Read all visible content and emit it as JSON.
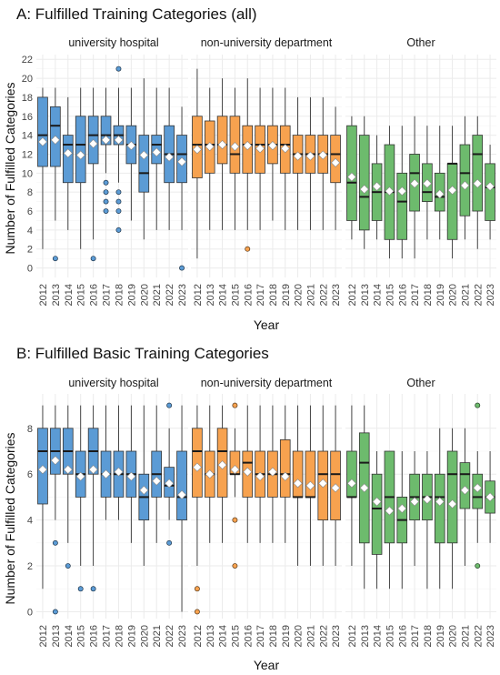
{
  "chart_data": [
    {
      "type": "box",
      "title": "A: Fulfilled Training Categories (all)",
      "xlabel": "Year",
      "ylabel": "Number of Fulfilled Categories",
      "ylim": [
        -1,
        22.5
      ],
      "yticks": [
        0,
        2,
        4,
        6,
        8,
        10,
        12,
        14,
        16,
        18,
        20,
        22
      ],
      "years": [
        "2012",
        "2013",
        "2014",
        "2015",
        "2016",
        "2017",
        "2018",
        "2019",
        "2020",
        "2021",
        "2022",
        "2023"
      ],
      "grid": true,
      "legend": "none",
      "facets": [
        {
          "name": "university hospital",
          "color": "#5b9bd5",
          "boxes": [
            {
              "min": 2,
              "q1": 10.7,
              "median": 14,
              "q3": 18,
              "max": 19,
              "mean": 13.3,
              "outliers": []
            },
            {
              "min": 5,
              "q1": 10.7,
              "median": 15,
              "q3": 17,
              "max": 19,
              "mean": 13.5,
              "outliers": [
                1
              ]
            },
            {
              "min": 4,
              "q1": 9,
              "median": 13,
              "q3": 14,
              "max": 18,
              "mean": 12.1,
              "outliers": []
            },
            {
              "min": 2,
              "q1": 9,
              "median": 13,
              "q3": 16,
              "max": 19,
              "mean": 11.9,
              "outliers": []
            },
            {
              "min": 3,
              "q1": 11,
              "median": 14,
              "q3": 16,
              "max": 19,
              "mean": 13.1,
              "outliers": [
                1
              ]
            },
            {
              "min": 10,
              "q1": 13,
              "median": 14,
              "q3": 16,
              "max": 19,
              "mean": 13.5,
              "outliers": [
                6,
                7,
                8,
                9
              ]
            },
            {
              "min": 9,
              "q1": 13,
              "median": 14,
              "q3": 15,
              "max": 19,
              "mean": 13.5,
              "outliers": [
                4,
                6,
                7,
                8,
                21
              ]
            },
            {
              "min": 5,
              "q1": 11,
              "median": 13,
              "q3": 15,
              "max": 19,
              "mean": 12.9,
              "outliers": []
            },
            {
              "min": 3,
              "q1": 8,
              "median": 10,
              "q3": 14,
              "max": 20,
              "mean": 11.9,
              "outliers": []
            },
            {
              "min": 4,
              "q1": 11,
              "median": 13,
              "q3": 14,
              "max": 19,
              "mean": 12.2,
              "outliers": []
            },
            {
              "min": 4,
              "q1": 9,
              "median": 12,
              "q3": 15,
              "max": 19,
              "mean": 11.7,
              "outliers": []
            },
            {
              "min": 4,
              "q1": 9,
              "median": 12,
              "q3": 14,
              "max": 17,
              "mean": 11.2,
              "outliers": [
                0
              ]
            }
          ]
        },
        {
          "name": "non-university department",
          "color": "#f7a24f",
          "boxes": [
            {
              "min": 1,
              "q1": 9.5,
              "median": 13,
              "q3": 16,
              "max": 21,
              "mean": 12.5,
              "outliers": []
            },
            {
              "min": 4,
              "q1": 10,
              "median": 13,
              "q3": 15.5,
              "max": 19,
              "mean": 12.8,
              "outliers": []
            },
            {
              "min": 4,
              "q1": 11,
              "median": 13,
              "q3": 16,
              "max": 20,
              "mean": 13,
              "outliers": []
            },
            {
              "min": 4,
              "q1": 10,
              "median": 12,
              "q3": 16,
              "max": 19,
              "mean": 12.8,
              "outliers": []
            },
            {
              "min": 4,
              "q1": 10,
              "median": 13,
              "q3": 15,
              "max": 20,
              "mean": 12.9,
              "outliers": [
                2
              ]
            },
            {
              "min": 4,
              "q1": 10,
              "median": 13,
              "q3": 15,
              "max": 19,
              "mean": 12.6,
              "outliers": []
            },
            {
              "min": 5,
              "q1": 11,
              "median": 13,
              "q3": 15,
              "max": 19,
              "mean": 12.9,
              "outliers": []
            },
            {
              "min": 4,
              "q1": 10,
              "median": 13,
              "q3": 15,
              "max": 19,
              "mean": 12.6,
              "outliers": []
            },
            {
              "min": 4,
              "q1": 10,
              "median": 12,
              "q3": 14,
              "max": 18,
              "mean": 11.8,
              "outliers": []
            },
            {
              "min": 4,
              "q1": 10,
              "median": 12,
              "q3": 14,
              "max": 18,
              "mean": 11.8,
              "outliers": []
            },
            {
              "min": 4,
              "q1": 10,
              "median": 12,
              "q3": 14,
              "max": 18,
              "mean": 11.9,
              "outliers": []
            },
            {
              "min": 4,
              "q1": 9,
              "median": 12,
              "q3": 14,
              "max": 17,
              "mean": 11.1,
              "outliers": []
            }
          ]
        },
        {
          "name": "Other",
          "color": "#6dbb6d",
          "boxes": [
            {
              "min": 3,
              "q1": 5,
              "median": 9,
              "q3": 15,
              "max": 16,
              "mean": 9.6,
              "outliers": []
            },
            {
              "min": 2,
              "q1": 4,
              "median": 7.5,
              "q3": 14,
              "max": 16,
              "mean": 8.3,
              "outliers": []
            },
            {
              "min": 3,
              "q1": 5,
              "median": 8,
              "q3": 11,
              "max": 14,
              "mean": 8.6,
              "outliers": []
            },
            {
              "min": 1,
              "q1": 3,
              "median": 8,
              "q3": 13,
              "max": 15,
              "mean": 8.1,
              "outliers": []
            },
            {
              "min": 1,
              "q1": 3,
              "median": 7,
              "q3": 10,
              "max": 15,
              "mean": 8.1,
              "outliers": []
            },
            {
              "min": 1,
              "q1": 6,
              "median": 10,
              "q3": 12,
              "max": 16,
              "mean": 8.9,
              "outliers": []
            },
            {
              "min": 3,
              "q1": 7,
              "median": 8,
              "q3": 11,
              "max": 15,
              "mean": 8.9,
              "outliers": []
            },
            {
              "min": 3,
              "q1": 6,
              "median": 7.5,
              "q3": 10,
              "max": 15,
              "mean": 7.8,
              "outliers": []
            },
            {
              "min": 1,
              "q1": 3,
              "median": 11,
              "q3": 11,
              "max": 15,
              "mean": 8.2,
              "outliers": []
            },
            {
              "min": 3,
              "q1": 5.5,
              "median": 10,
              "q3": 13,
              "max": 16,
              "mean": 8.7,
              "outliers": []
            },
            {
              "min": 2,
              "q1": 6,
              "median": 12,
              "q3": 14,
              "max": 16,
              "mean": 8.9,
              "outliers": []
            },
            {
              "min": 3,
              "q1": 5,
              "median": 8.5,
              "q3": 11,
              "max": 13,
              "mean": 8.6,
              "outliers": []
            }
          ]
        }
      ]
    },
    {
      "type": "box",
      "title": "B: Fulfilled Basic Training Categories",
      "xlabel": "Year",
      "ylabel": "Number of Fulfilled Categories",
      "ylim": [
        -0.3,
        9.5
      ],
      "yticks": [
        0,
        2,
        4,
        6,
        8
      ],
      "years": [
        "2012",
        "2013",
        "2014",
        "2015",
        "2016",
        "2017",
        "2018",
        "2019",
        "2020",
        "2021",
        "2022",
        "2023"
      ],
      "grid": true,
      "legend": "none",
      "facets": [
        {
          "name": "university hospital",
          "color": "#5b9bd5",
          "boxes": [
            {
              "min": 1,
              "q1": 4.7,
              "median": 7,
              "q3": 8,
              "max": 9,
              "mean": 6.2,
              "outliers": []
            },
            {
              "min": 4,
              "q1": 6,
              "median": 7,
              "q3": 8,
              "max": 9,
              "mean": 6.6,
              "outliers": [
                0,
                3
              ]
            },
            {
              "min": 3,
              "q1": 6,
              "median": 7,
              "q3": 8,
              "max": 9,
              "mean": 6.2,
              "outliers": [
                2
              ]
            },
            {
              "min": 2,
              "q1": 5,
              "median": 6,
              "q3": 7,
              "max": 9,
              "mean": 5.9,
              "outliers": [
                1
              ]
            },
            {
              "min": 2,
              "q1": 6,
              "median": 7,
              "q3": 8,
              "max": 9,
              "mean": 6.2,
              "outliers": [
                1
              ]
            },
            {
              "min": 4,
              "q1": 5,
              "median": 6,
              "q3": 7,
              "max": 9,
              "mean": 6,
              "outliers": []
            },
            {
              "min": 4,
              "q1": 5,
              "median": 6,
              "q3": 7,
              "max": 9,
              "mean": 6.1,
              "outliers": []
            },
            {
              "min": 3,
              "q1": 5,
              "median": 6,
              "q3": 7,
              "max": 9,
              "mean": 5.9,
              "outliers": []
            },
            {
              "min": 2,
              "q1": 4,
              "median": 5,
              "q3": 6,
              "max": 9,
              "mean": 5.3,
              "outliers": []
            },
            {
              "min": 3,
              "q1": 5,
              "median": 6,
              "q3": 7,
              "max": 9,
              "mean": 5.7,
              "outliers": []
            },
            {
              "min": 4,
              "q1": 5,
              "median": 5.5,
              "q3": 6.3,
              "max": 8,
              "mean": 5.6,
              "outliers": [
                3,
                9
              ]
            },
            {
              "min": 0,
              "q1": 4,
              "median": 5,
              "q3": 7,
              "max": 9,
              "mean": 5.1,
              "outliers": []
            }
          ]
        },
        {
          "name": "non-university department",
          "color": "#f7a24f",
          "boxes": [
            {
              "min": 2,
              "q1": 5,
              "median": 7,
              "q3": 8,
              "max": 9,
              "mean": 6.3,
              "outliers": [
                0,
                1
              ]
            },
            {
              "min": 3,
              "q1": 5,
              "median": 6,
              "q3": 7,
              "max": 9,
              "mean": 6,
              "outliers": []
            },
            {
              "min": 3,
              "q1": 5,
              "median": 7,
              "q3": 8,
              "max": 9,
              "mean": 6.4,
              "outliers": []
            },
            {
              "min": 5,
              "q1": 6,
              "median": 6,
              "q3": 7,
              "max": 8,
              "mean": 6.2,
              "outliers": [
                2,
                4,
                9
              ]
            },
            {
              "min": 3,
              "q1": 5,
              "median": 6.5,
              "q3": 7,
              "max": 9,
              "mean": 6.1,
              "outliers": []
            },
            {
              "min": 3,
              "q1": 5,
              "median": 6,
              "q3": 7,
              "max": 9,
              "mean": 5.9,
              "outliers": []
            },
            {
              "min": 3,
              "q1": 5,
              "median": 6,
              "q3": 7,
              "max": 9,
              "mean": 6.1,
              "outliers": []
            },
            {
              "min": 3,
              "q1": 5,
              "median": 6,
              "q3": 7.5,
              "max": 9,
              "mean": 5.9,
              "outliers": []
            },
            {
              "min": 2,
              "q1": 5,
              "median": 5,
              "q3": 7,
              "max": 9,
              "mean": 5.6,
              "outliers": []
            },
            {
              "min": 2,
              "q1": 5,
              "median": 5,
              "q3": 7,
              "max": 9,
              "mean": 5.5,
              "outliers": []
            },
            {
              "min": 2,
              "q1": 4,
              "median": 6,
              "q3": 7,
              "max": 9,
              "mean": 5.6,
              "outliers": []
            },
            {
              "min": 2,
              "q1": 4,
              "median": 6,
              "q3": 7,
              "max": 9,
              "mean": 5.4,
              "outliers": []
            }
          ]
        },
        {
          "name": "Other",
          "color": "#6dbb6d",
          "boxes": [
            {
              "min": 2,
              "q1": 5,
              "median": 5,
              "q3": 7,
              "max": 9,
              "mean": 5.6,
              "outliers": []
            },
            {
              "min": 1,
              "q1": 3,
              "median": 6.5,
              "q3": 7.8,
              "max": 9,
              "mean": 5.4,
              "outliers": []
            },
            {
              "min": 1,
              "q1": 2.5,
              "median": 4.5,
              "q3": 6,
              "max": 7,
              "mean": 4.8,
              "outliers": []
            },
            {
              "min": 1,
              "q1": 3,
              "median": 5,
              "q3": 7,
              "max": 7,
              "mean": 4.4,
              "outliers": []
            },
            {
              "min": 1,
              "q1": 3,
              "median": 4,
              "q3": 5,
              "max": 7,
              "mean": 4.5,
              "outliers": []
            },
            {
              "min": 2,
              "q1": 4,
              "median": 5,
              "q3": 6,
              "max": 7,
              "mean": 4.8,
              "outliers": []
            },
            {
              "min": 1,
              "q1": 4,
              "median": 5,
              "q3": 6,
              "max": 7,
              "mean": 4.9,
              "outliers": []
            },
            {
              "min": 1,
              "q1": 3,
              "median": 5,
              "q3": 6,
              "max": 8,
              "mean": 4.8,
              "outliers": []
            },
            {
              "min": 1,
              "q1": 3,
              "median": 6,
              "q3": 7,
              "max": 8,
              "mean": 4.7,
              "outliers": []
            },
            {
              "min": 2,
              "q1": 4.5,
              "median": 6,
              "q3": 6.5,
              "max": 8,
              "mean": 5.3,
              "outliers": []
            },
            {
              "min": 3,
              "q1": 4.5,
              "median": 5,
              "q3": 6,
              "max": 7,
              "mean": 5.4,
              "outliers": [
                2,
                9
              ]
            },
            {
              "min": 3,
              "q1": 4.3,
              "median": 5,
              "q3": 5.7,
              "max": 7,
              "mean": 5,
              "outliers": []
            }
          ]
        }
      ]
    }
  ]
}
